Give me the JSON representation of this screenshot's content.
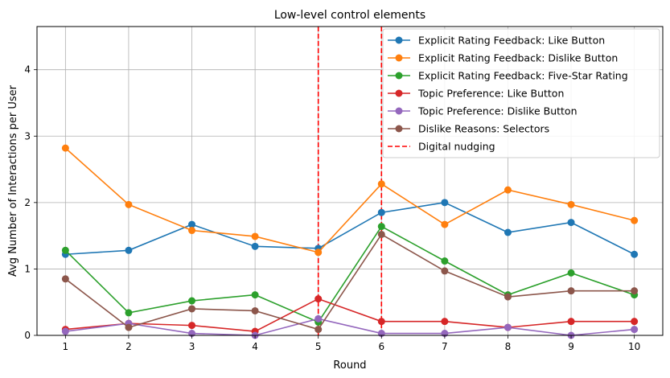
{
  "chart_data": {
    "type": "line",
    "title": "Low-level control elements",
    "xlabel": "Round",
    "ylabel": "Avg Number of Interactions per User",
    "x": [
      1,
      2,
      3,
      4,
      5,
      6,
      7,
      8,
      9,
      10
    ],
    "xticks": [
      "1",
      "2",
      "3",
      "4",
      "5",
      "6",
      "7",
      "8",
      "9",
      "10"
    ],
    "yticks": [
      "0",
      "1",
      "2",
      "3",
      "4"
    ],
    "xlim": [
      0.55,
      10.45
    ],
    "ylim": [
      0,
      4.65
    ],
    "grid": true,
    "legend_position": "top-right",
    "series": [
      {
        "name": "Explicit Rating Feedback: Like Button",
        "color": "#1f77b4",
        "values": [
          1.22,
          1.28,
          1.67,
          1.34,
          1.31,
          1.85,
          2.0,
          1.55,
          1.7,
          1.22
        ]
      },
      {
        "name": "Explicit Rating Feedback: Dislike Button",
        "color": "#ff7f0e",
        "values": [
          2.82,
          1.97,
          1.58,
          1.49,
          1.25,
          2.28,
          1.67,
          2.19,
          1.97,
          1.73
        ]
      },
      {
        "name": "Explicit Rating Feedback: Five-Star Rating",
        "color": "#2ca02c",
        "values": [
          1.28,
          0.34,
          0.52,
          0.61,
          0.2,
          1.64,
          1.12,
          0.61,
          0.94,
          0.61
        ]
      },
      {
        "name": "Topic Preference: Like Button",
        "color": "#d62728",
        "values": [
          0.09,
          0.18,
          0.15,
          0.06,
          0.55,
          0.21,
          0.21,
          0.12,
          0.21,
          0.21
        ]
      },
      {
        "name": "Topic Preference: Dislike Button",
        "color": "#9467bd",
        "values": [
          0.06,
          0.18,
          0.03,
          0.0,
          0.25,
          0.03,
          0.03,
          0.12,
          0.0,
          0.09
        ]
      },
      {
        "name": "Dislike Reasons: Selectors",
        "color": "#8c564b",
        "values": [
          0.85,
          0.12,
          0.4,
          0.37,
          0.09,
          1.52,
          0.97,
          0.58,
          0.67,
          0.67
        ]
      }
    ],
    "vlines": {
      "name": "Digital nudging",
      "color": "#ff0000",
      "x": [
        5,
        6
      ]
    }
  }
}
